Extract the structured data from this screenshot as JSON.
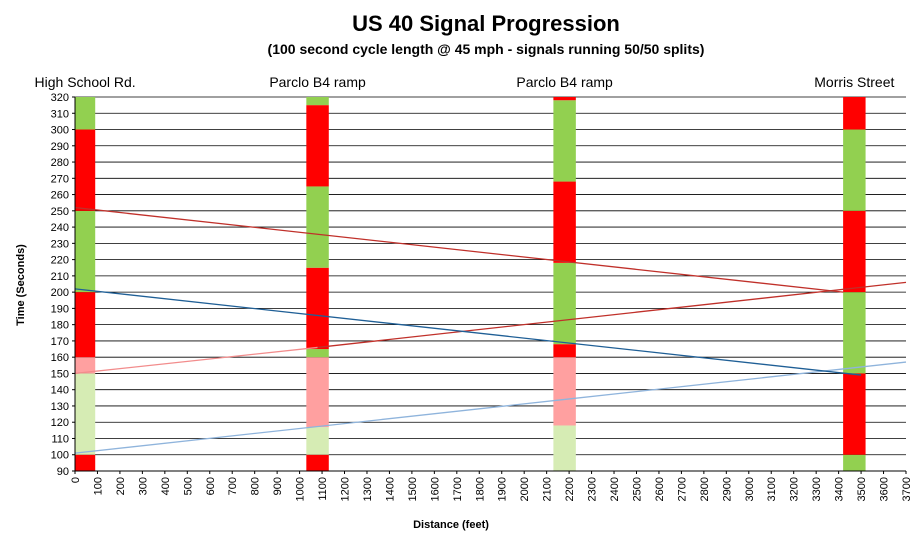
{
  "chart_data": {
    "type": "line",
    "title": "US 40 Signal Progression",
    "subtitle": "(100 second cycle length @ 45 mph - signals running 50/50 splits)",
    "xlabel": "Distance (feet)",
    "ylabel": "Time (Seconds)",
    "xlim": [
      0,
      3700
    ],
    "ylim": [
      90,
      320
    ],
    "x_ticks": [
      0,
      100,
      200,
      300,
      400,
      500,
      600,
      700,
      800,
      900,
      1000,
      1100,
      1200,
      1300,
      1400,
      1500,
      1600,
      1700,
      1800,
      1900,
      2000,
      2100,
      2200,
      2300,
      2400,
      2500,
      2600,
      2700,
      2800,
      2900,
      3000,
      3100,
      3200,
      3300,
      3400,
      3500,
      3600,
      3700
    ],
    "y_ticks": [
      90,
      100,
      110,
      120,
      130,
      140,
      150,
      160,
      170,
      180,
      190,
      200,
      210,
      220,
      230,
      240,
      250,
      260,
      270,
      280,
      290,
      300,
      310,
      320
    ],
    "grid": true,
    "signals": [
      {
        "label": "High School Rd.",
        "x": [
          0,
          90
        ],
        "phases": [
          {
            "from": 90,
            "to": 100,
            "state": "red"
          },
          {
            "from": 100,
            "to": 150,
            "state": "green",
            "faded": true
          },
          {
            "from": 150,
            "to": 160,
            "state": "red",
            "faded": true
          },
          {
            "from": 160,
            "to": 200,
            "state": "red"
          },
          {
            "from": 200,
            "to": 250,
            "state": "green"
          },
          {
            "from": 250,
            "to": 300,
            "state": "red"
          },
          {
            "from": 300,
            "to": 320,
            "state": "green"
          }
        ]
      },
      {
        "label": "Parclo B4 ramp",
        "x": [
          1030,
          1130
        ],
        "phases": [
          {
            "from": 90,
            "to": 100,
            "state": "red"
          },
          {
            "from": 100,
            "to": 117,
            "state": "green",
            "faded": true
          },
          {
            "from": 117,
            "to": 160,
            "state": "red",
            "faded": true
          },
          {
            "from": 160,
            "to": 165,
            "state": "green"
          },
          {
            "from": 165,
            "to": 215,
            "state": "red"
          },
          {
            "from": 215,
            "to": 265,
            "state": "green"
          },
          {
            "from": 265,
            "to": 315,
            "state": "red"
          },
          {
            "from": 315,
            "to": 320,
            "state": "green"
          }
        ]
      },
      {
        "label": "Parclo B4 ramp",
        "x": [
          2130,
          2230
        ],
        "phases": [
          {
            "from": 90,
            "to": 118,
            "state": "green",
            "faded": true
          },
          {
            "from": 118,
            "to": 160,
            "state": "red",
            "faded": true
          },
          {
            "from": 160,
            "to": 168,
            "state": "red"
          },
          {
            "from": 168,
            "to": 218,
            "state": "green"
          },
          {
            "from": 218,
            "to": 268,
            "state": "red"
          },
          {
            "from": 268,
            "to": 318,
            "state": "green"
          },
          {
            "from": 318,
            "to": 320,
            "state": "red"
          }
        ]
      },
      {
        "label": "Morris Street",
        "x": [
          3420,
          3520
        ],
        "phases": [
          {
            "from": 90,
            "to": 100,
            "state": "green"
          },
          {
            "from": 100,
            "to": 150,
            "state": "red"
          },
          {
            "from": 150,
            "to": 200,
            "state": "green"
          },
          {
            "from": 200,
            "to": 250,
            "state": "red"
          },
          {
            "from": 250,
            "to": 300,
            "state": "green"
          },
          {
            "from": 300,
            "to": 320,
            "state": "red"
          }
        ]
      }
    ],
    "series": [
      {
        "color": "#f28c8c",
        "x": [
          0,
          1080
        ],
        "y": [
          150,
          166
        ]
      },
      {
        "color": "#c0302a",
        "x": [
          1080,
          3700
        ],
        "y": [
          166,
          206
        ]
      },
      {
        "color": "#c0302a",
        "x": [
          0,
          3420
        ],
        "y": [
          252,
          200
        ]
      },
      {
        "color": "#8fb4dc",
        "x": [
          0,
          2180
        ],
        "y": [
          101,
          134
        ]
      },
      {
        "color": "#8fb4dc",
        "x": [
          2180,
          3700
        ],
        "y": [
          134,
          157
        ]
      },
      {
        "color": "#1f5f96",
        "x": [
          0,
          3500
        ],
        "y": [
          202,
          149
        ]
      }
    ],
    "colors": {
      "red": "#ff0000",
      "green": "#92d050",
      "red_faded": "#ffa0a0",
      "green_faded": "#d6ecb4",
      "grid": "#000000"
    }
  }
}
